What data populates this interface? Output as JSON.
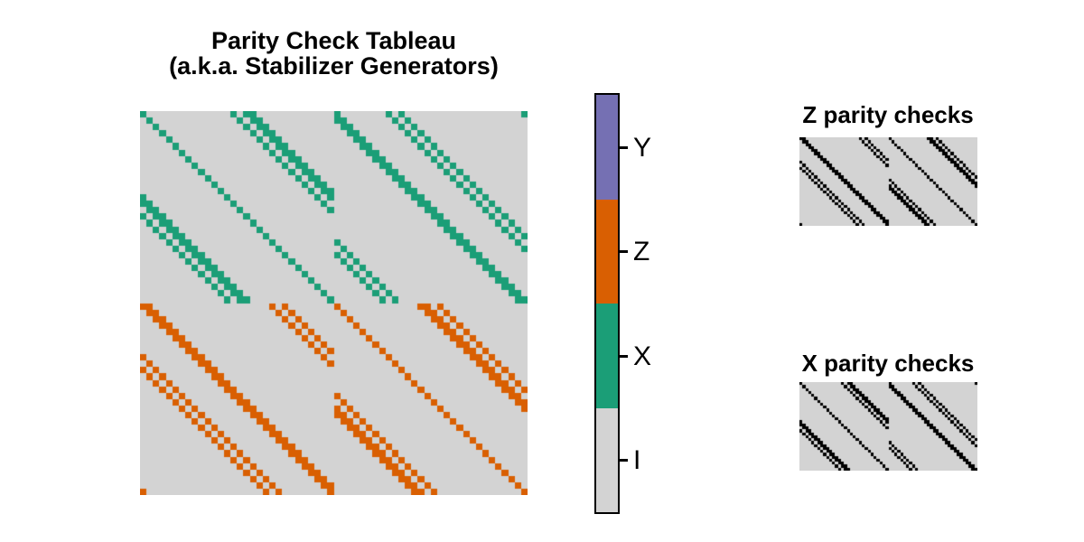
{
  "titles": {
    "main_line1": "Parity Check Tableau",
    "main_line2": "(a.k.a. Stabilizer Generators)",
    "z_panel": "Z parity checks",
    "x_panel": "X parity checks"
  },
  "colors": {
    "identity_bg": "#d3d3d3",
    "x_teal": "#1b9e77",
    "z_orange": "#d95f02",
    "y_purple": "#7570b3",
    "one_black": "#000000",
    "page_bg": "#ffffff",
    "text": "#000000"
  },
  "colorbar": {
    "orientation": "vertical",
    "segments": [
      {
        "label": "Y",
        "color": "#7570b3"
      },
      {
        "label": "Z",
        "color": "#d95f02"
      },
      {
        "label": "X",
        "color": "#1b9e77"
      },
      {
        "label": "I",
        "color": "#d3d3d3"
      }
    ],
    "ticks": [
      {
        "label": "Y"
      },
      {
        "label": "Z"
      },
      {
        "label": "X"
      },
      {
        "label": "I"
      }
    ]
  },
  "chart_data": [
    {
      "id": "tableau",
      "type": "heatmap",
      "title": "Parity Check Tableau (a.k.a. Stabilizer Generators)",
      "rows": 60,
      "cols": 60,
      "cell_values": "Pauli symbols I/X/Z (no Y cells present)",
      "legend": {
        "I": "#d3d3d3",
        "X": "#1b9e77",
        "Z": "#d95f02",
        "Y": "#7570b3"
      },
      "axis": "none (no ticks or axis labels shown)",
      "blocks": [
        {
          "rows": "0-29",
          "symbol": "X",
          "source": "x_checks"
        },
        {
          "rows": "30-59",
          "symbol": "Z",
          "source": "z_checks"
        }
      ],
      "pattern_note": "Block-circulant (block size 30). X rows: left-half column offsets {0,14,16,17}, right-half offsets {0,8,10,29}; Z rows: left-half {0,1,20,22}, right-half {0,13,14,16}, all mod 30."
    },
    {
      "id": "z_checks",
      "type": "heatmap",
      "title": "Z parity checks",
      "rows": 30,
      "cols": 60,
      "cell_values": "binary (1 = black, 0 = gray)",
      "ones": [
        [
          0,
          1,
          20,
          22,
          30,
          43,
          44,
          46
        ],
        [
          1,
          2,
          21,
          23,
          31,
          44,
          45,
          47
        ],
        [
          2,
          3,
          22,
          24,
          32,
          45,
          46,
          48
        ],
        [
          3,
          4,
          23,
          25,
          33,
          46,
          47,
          49
        ],
        [
          4,
          5,
          24,
          26,
          34,
          47,
          48,
          50
        ],
        [
          5,
          6,
          25,
          27,
          35,
          48,
          49,
          51
        ],
        [
          6,
          7,
          26,
          28,
          36,
          49,
          50,
          52
        ],
        [
          7,
          8,
          27,
          29,
          37,
          50,
          51,
          53
        ],
        [
          0,
          8,
          9,
          28,
          38,
          51,
          52,
          54
        ],
        [
          1,
          9,
          10,
          29,
          39,
          52,
          53,
          55
        ],
        [
          0,
          2,
          10,
          11,
          40,
          53,
          54,
          56
        ],
        [
          1,
          3,
          11,
          12,
          41,
          54,
          55,
          57
        ],
        [
          2,
          4,
          12,
          13,
          42,
          55,
          56,
          58
        ],
        [
          3,
          5,
          13,
          14,
          43,
          56,
          57,
          59
        ],
        [
          4,
          6,
          14,
          15,
          30,
          44,
          57,
          58
        ],
        [
          5,
          7,
          15,
          16,
          31,
          45,
          58,
          59
        ],
        [
          6,
          8,
          16,
          17,
          30,
          32,
          46,
          59
        ],
        [
          7,
          9,
          17,
          18,
          30,
          31,
          33,
          47
        ],
        [
          8,
          10,
          18,
          19,
          31,
          32,
          34,
          48
        ],
        [
          9,
          11,
          19,
          20,
          32,
          33,
          35,
          49
        ],
        [
          10,
          12,
          20,
          21,
          33,
          34,
          36,
          50
        ],
        [
          11,
          13,
          21,
          22,
          34,
          35,
          37,
          51
        ],
        [
          12,
          14,
          22,
          23,
          35,
          36,
          38,
          52
        ],
        [
          13,
          15,
          23,
          24,
          36,
          37,
          39,
          53
        ],
        [
          14,
          16,
          24,
          25,
          37,
          38,
          40,
          54
        ],
        [
          15,
          17,
          25,
          26,
          38,
          39,
          41,
          55
        ],
        [
          16,
          18,
          26,
          27,
          39,
          40,
          42,
          56
        ],
        [
          17,
          19,
          27,
          28,
          40,
          41,
          43,
          57
        ],
        [
          18,
          20,
          28,
          29,
          41,
          42,
          44,
          58
        ],
        [
          0,
          19,
          21,
          29,
          42,
          43,
          45,
          59
        ]
      ]
    },
    {
      "id": "x_checks",
      "type": "heatmap",
      "title": "X parity checks",
      "rows": 30,
      "cols": 60,
      "cell_values": "binary (1 = black, 0 = gray)",
      "ones": [
        [
          0,
          14,
          16,
          17,
          30,
          38,
          40,
          59
        ],
        [
          1,
          15,
          17,
          18,
          30,
          31,
          39,
          41
        ],
        [
          2,
          16,
          18,
          19,
          31,
          32,
          40,
          42
        ],
        [
          3,
          17,
          19,
          20,
          32,
          33,
          41,
          43
        ],
        [
          4,
          18,
          20,
          21,
          33,
          34,
          42,
          44
        ],
        [
          5,
          19,
          21,
          22,
          34,
          35,
          43,
          45
        ],
        [
          6,
          20,
          22,
          23,
          35,
          36,
          44,
          46
        ],
        [
          7,
          21,
          23,
          24,
          36,
          37,
          45,
          47
        ],
        [
          8,
          22,
          24,
          25,
          37,
          38,
          46,
          48
        ],
        [
          9,
          23,
          25,
          26,
          38,
          39,
          47,
          49
        ],
        [
          10,
          24,
          26,
          27,
          39,
          40,
          48,
          50
        ],
        [
          11,
          25,
          27,
          28,
          40,
          41,
          49,
          51
        ],
        [
          12,
          26,
          28,
          29,
          41,
          42,
          50,
          52
        ],
        [
          0,
          13,
          27,
          29,
          42,
          43,
          51,
          53
        ],
        [
          0,
          1,
          14,
          28,
          43,
          44,
          52,
          54
        ],
        [
          1,
          2,
          15,
          29,
          44,
          45,
          53,
          55
        ],
        [
          0,
          2,
          3,
          16,
          45,
          46,
          54,
          56
        ],
        [
          1,
          3,
          4,
          17,
          46,
          47,
          55,
          57
        ],
        [
          2,
          4,
          5,
          18,
          47,
          48,
          56,
          58
        ],
        [
          3,
          5,
          6,
          19,
          48,
          49,
          57,
          59
        ],
        [
          4,
          6,
          7,
          20,
          30,
          49,
          50,
          58
        ],
        [
          5,
          7,
          8,
          21,
          31,
          50,
          51,
          59
        ],
        [
          6,
          8,
          9,
          22,
          30,
          32,
          51,
          52
        ],
        [
          7,
          9,
          10,
          23,
          31,
          33,
          52,
          53
        ],
        [
          8,
          10,
          11,
          24,
          32,
          34,
          53,
          54
        ],
        [
          9,
          11,
          12,
          25,
          33,
          35,
          54,
          55
        ],
        [
          10,
          12,
          13,
          26,
          34,
          36,
          55,
          56
        ],
        [
          11,
          13,
          14,
          27,
          35,
          37,
          56,
          57
        ],
        [
          12,
          14,
          15,
          28,
          36,
          38,
          57,
          58
        ],
        [
          13,
          15,
          16,
          29,
          37,
          39,
          58,
          59
        ]
      ]
    }
  ]
}
